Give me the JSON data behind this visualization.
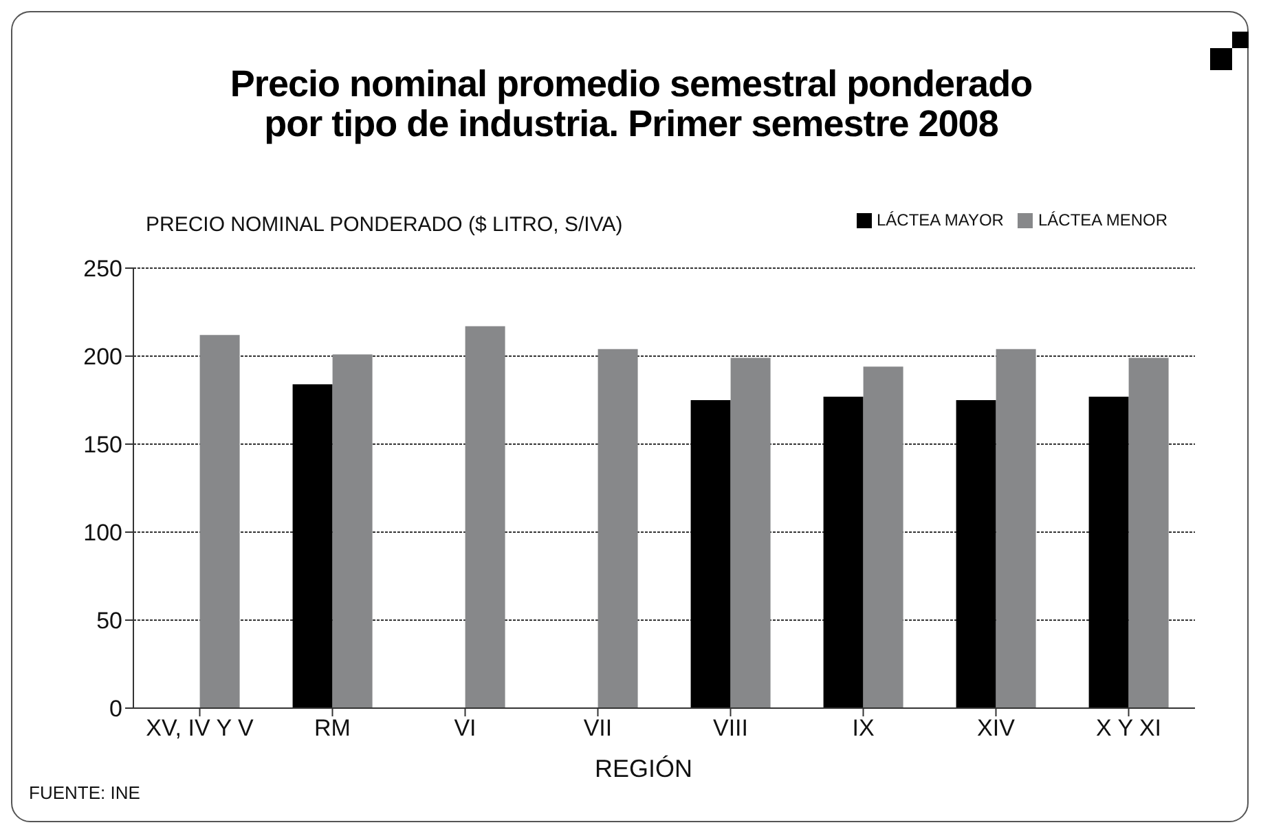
{
  "chart_data": {
    "type": "bar",
    "title": "Precio nominal promedio semestral ponderado\npor tipo de industria. Primer semestre 2008",
    "ylabel": "PRECIO NOMINAL PONDERADO ($ LITRO, S/IVA)",
    "xlabel": "REGIÓN",
    "annotations": [
      "FUENTE: INE"
    ],
    "categories": [
      "XV, IV Y V",
      "RM",
      "VI",
      "VII",
      "VIII",
      "IX",
      "XIV",
      "X Y XI"
    ],
    "series": [
      {
        "name": "LÁCTEA MAYOR",
        "color": "#000000",
        "values": [
          null,
          184,
          null,
          null,
          175,
          177,
          175,
          177
        ]
      },
      {
        "name": "LÁCTEA MENOR",
        "color": "#87888a",
        "values": [
          212,
          201,
          217,
          204,
          199,
          194,
          204,
          199
        ]
      }
    ],
    "ylim": [
      0,
      250
    ],
    "yticks": [
      0,
      50,
      100,
      150,
      200,
      250
    ],
    "grid": "y",
    "legend": "top right"
  }
}
